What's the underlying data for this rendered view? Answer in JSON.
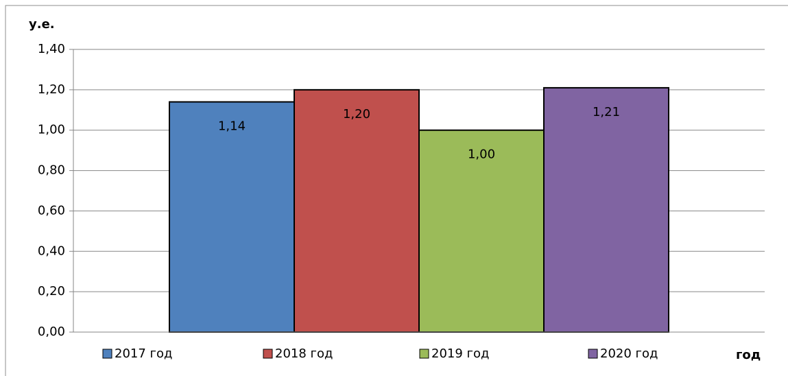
{
  "chart_data": {
    "type": "bar",
    "ylabel": "у.е.",
    "xlabel": "год",
    "series": [
      {
        "name": "2017 год",
        "color": "#4f81bd",
        "values": [
          1.14
        ],
        "value_labels": [
          "1,14"
        ]
      },
      {
        "name": "2018 год",
        "color": "#c0504d",
        "values": [
          1.2
        ],
        "value_labels": [
          "1,20"
        ]
      },
      {
        "name": "2019 год",
        "color": "#9bbb59",
        "values": [
          1.0
        ],
        "value_labels": [
          "1,00"
        ]
      },
      {
        "name": "2020 год",
        "color": "#8064a2",
        "values": [
          1.21
        ],
        "value_labels": [
          "1,21"
        ]
      }
    ],
    "ylim": [
      0,
      1.4
    ],
    "yticks": [
      {
        "value": 0,
        "label": "0,00"
      },
      {
        "value": 0.2,
        "label": "0,20"
      },
      {
        "value": 0.4,
        "label": "0,40"
      },
      {
        "value": 0.6,
        "label": "0,60"
      },
      {
        "value": 0.8,
        "label": "0,80"
      },
      {
        "value": 1.0,
        "label": "1,00"
      },
      {
        "value": 1.2,
        "label": "1,20"
      },
      {
        "value": 1.4,
        "label": "1,40"
      }
    ],
    "grid": true,
    "legend": "bottom"
  }
}
